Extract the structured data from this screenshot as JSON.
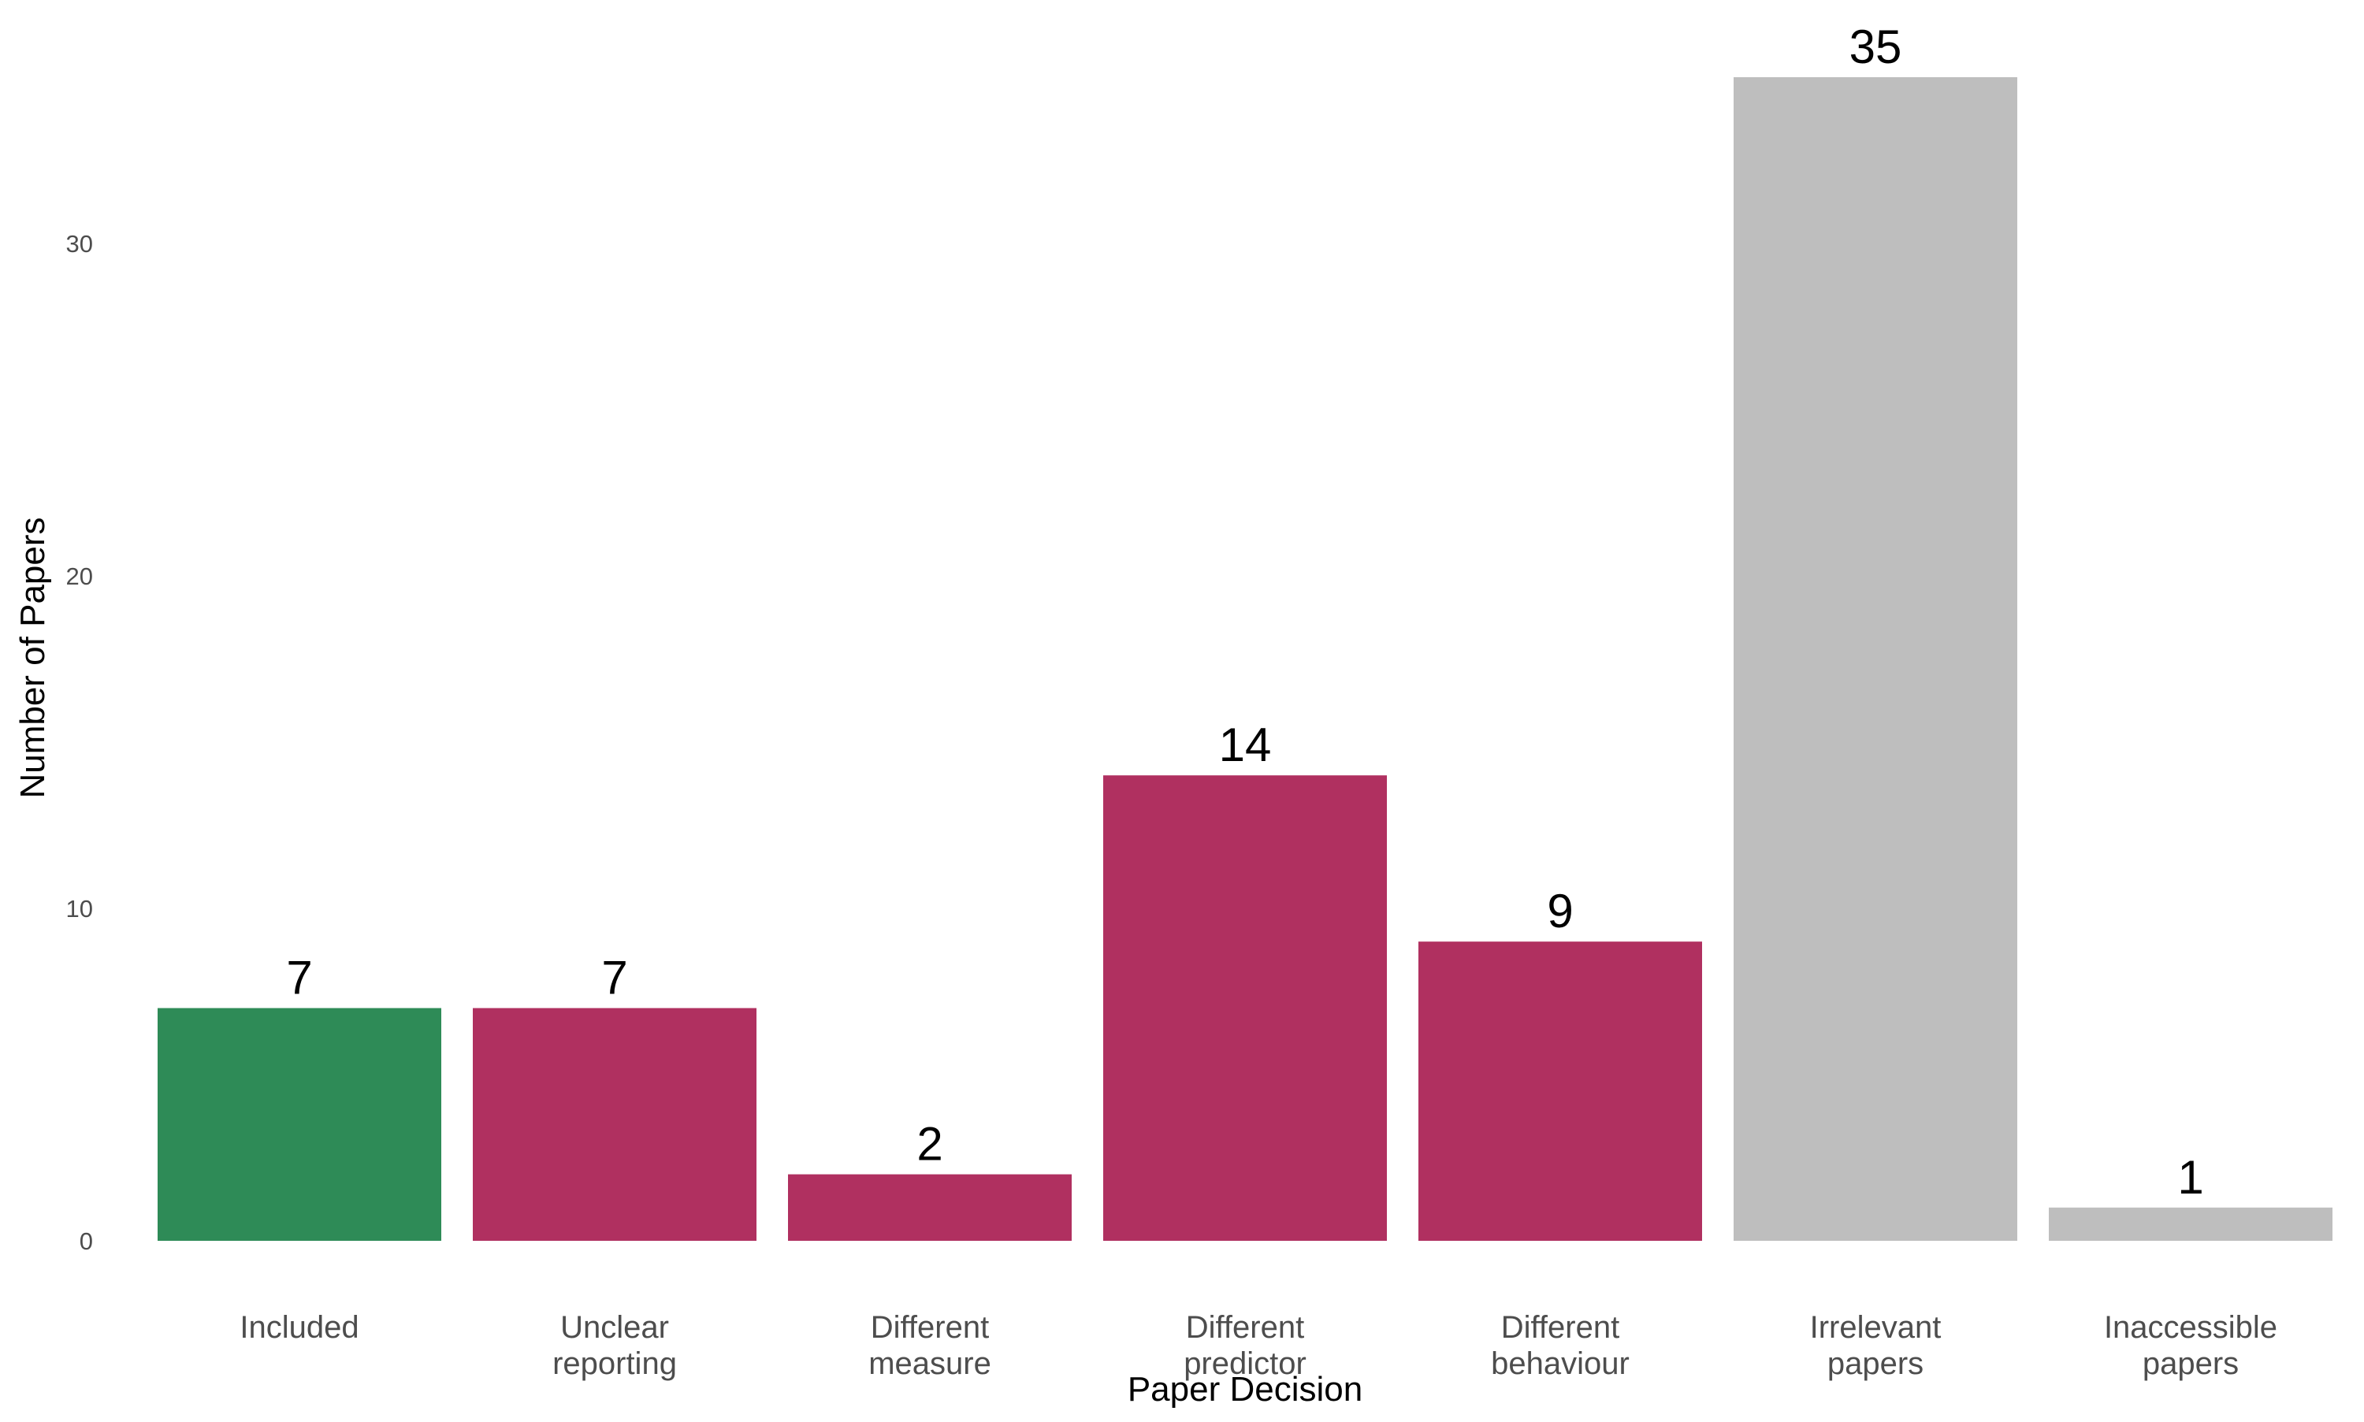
{
  "chart_data": {
    "type": "bar",
    "xlabel": "Paper Decision",
    "ylabel": "Number of Papers",
    "ylim": [
      0,
      36.5
    ],
    "yticks": [
      0,
      10,
      20,
      30
    ],
    "grid": false,
    "legend": "none",
    "categories": [
      [
        "Included"
      ],
      [
        "Unclear",
        "reporting"
      ],
      [
        "Different",
        "measure"
      ],
      [
        "Different",
        "predictor"
      ],
      [
        "Different",
        "behaviour"
      ],
      [
        "Irrelevant",
        "papers"
      ],
      [
        "Inaccessible",
        "papers"
      ]
    ],
    "values": [
      7,
      7,
      2,
      14,
      9,
      35,
      1
    ],
    "data_labels": [
      "7",
      "7",
      "2",
      "14",
      "9",
      "35",
      "1"
    ],
    "bar_colors": [
      "#2e8b57",
      "#b03060",
      "#b03060",
      "#b03060",
      "#b03060",
      "#bebebe",
      "#bebebe"
    ]
  }
}
